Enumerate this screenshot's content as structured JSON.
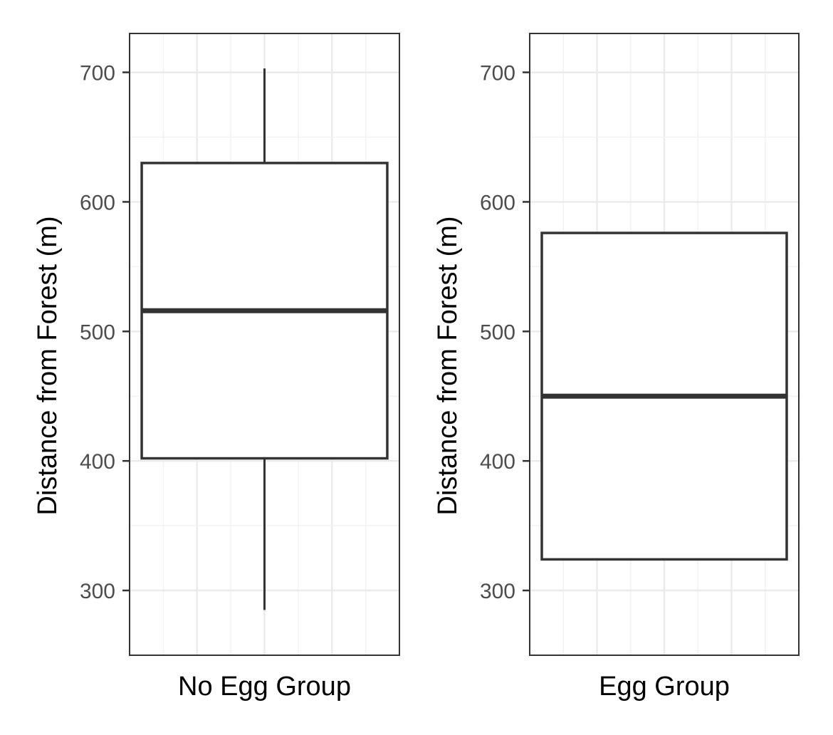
{
  "chart_data": [
    {
      "type": "boxplot",
      "title": "",
      "xlabel": "No Egg Group",
      "ylabel": "Distance from Forest (m)",
      "ylim": [
        250,
        730
      ],
      "yticks": [
        300,
        400,
        500,
        600,
        700
      ],
      "grid": true,
      "stats": {
        "whisker_low": 285,
        "q1": 402,
        "median": 516,
        "q3": 630,
        "whisker_high": 703
      }
    },
    {
      "type": "boxplot",
      "title": "",
      "xlabel": "Egg Group",
      "ylabel": "Distance from Forest (m)",
      "ylim": [
        250,
        730
      ],
      "yticks": [
        300,
        400,
        500,
        600,
        700
      ],
      "grid": true,
      "stats": {
        "whisker_low": 324,
        "q1": 324,
        "median": 450,
        "q3": 576,
        "whisker_high": 576
      }
    }
  ],
  "colors": {
    "panel_border": "#333333",
    "grid_major": "#ebebeb",
    "grid_minor": "#f2f2f2",
    "box_line": "#333333",
    "box_fill": "#ffffff",
    "tick_text": "#4d4d4d",
    "title_text": "#000000"
  }
}
